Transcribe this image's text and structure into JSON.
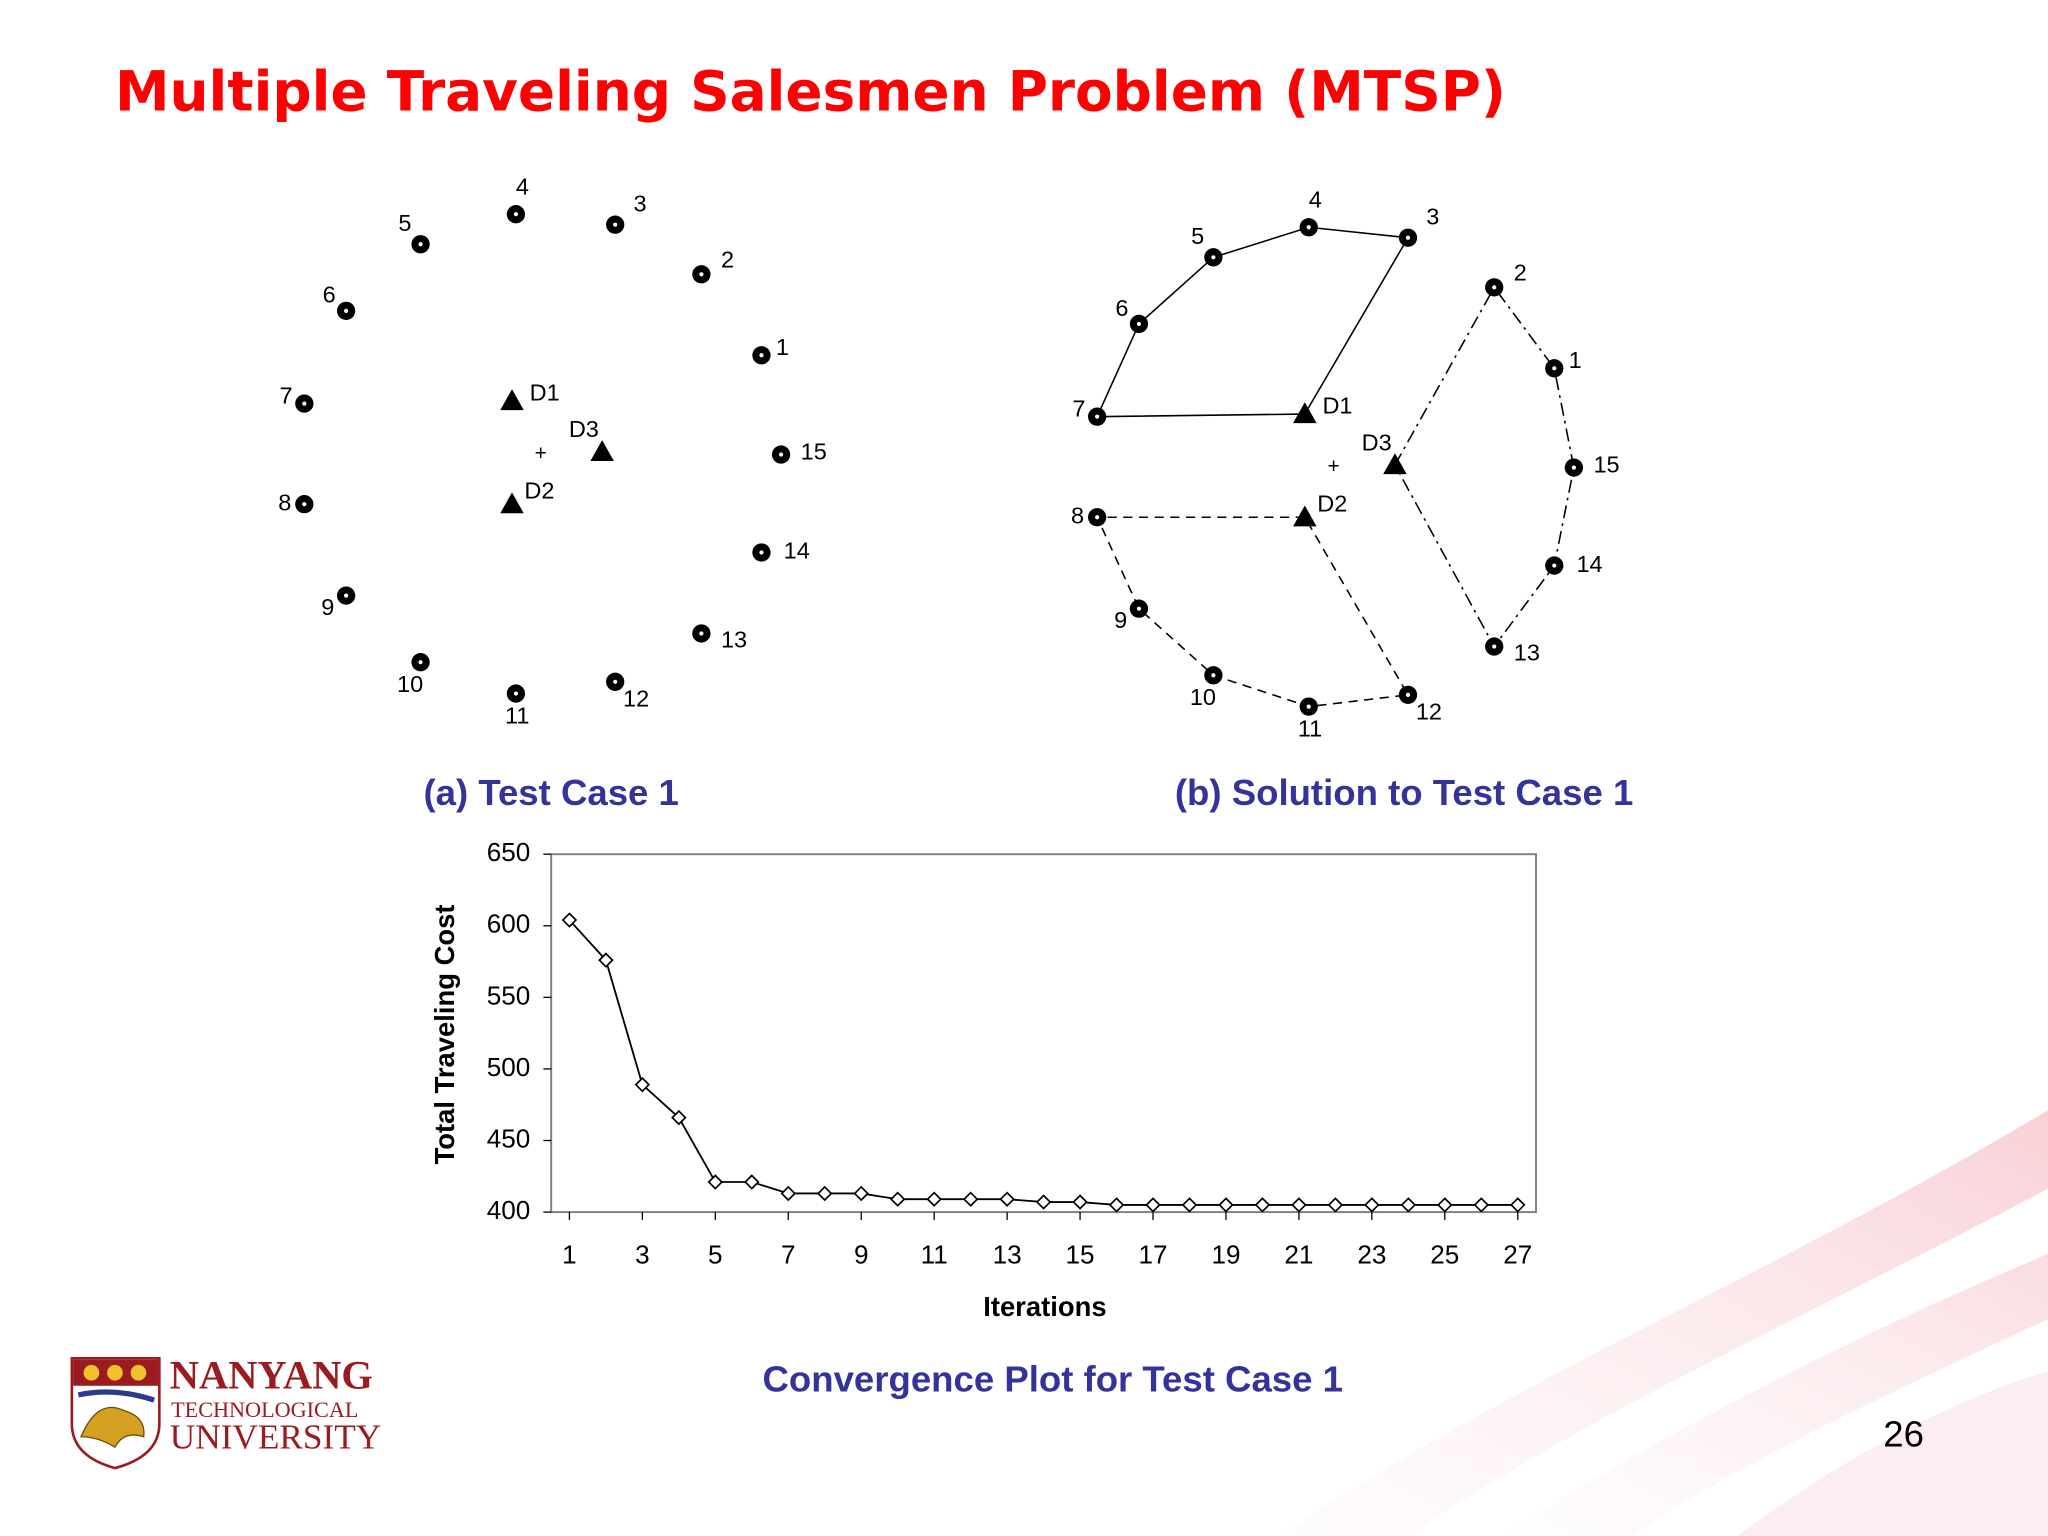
{
  "title": "Multiple Traveling Salesmen Problem (MTSP)",
  "panels": [
    {
      "caption": "(a) Test Case 1",
      "nodes": [
        "1",
        "2",
        "3",
        "4",
        "5",
        "6",
        "7",
        "8",
        "9",
        "10",
        "11",
        "12",
        "13",
        "14",
        "15"
      ],
      "depots": [
        "D1",
        "D2",
        "D3"
      ]
    },
    {
      "caption": "(b) Solution to Test Case 1",
      "nodes": [
        "1",
        "2",
        "3",
        "4",
        "5",
        "6",
        "7",
        "8",
        "9",
        "10",
        "11",
        "12",
        "13",
        "14",
        "15"
      ],
      "depots": [
        "D1",
        "D2",
        "D3"
      ]
    }
  ],
  "chart_data": {
    "type": "line",
    "caption": "Convergence Plot for Test Case 1",
    "xlabel": "Iterations",
    "ylabel": "Total Traveling Cost",
    "x": [
      1,
      2,
      3,
      4,
      5,
      6,
      7,
      8,
      9,
      10,
      11,
      12,
      13,
      14,
      15,
      16,
      17,
      18,
      19,
      20,
      21,
      22,
      23,
      24,
      25,
      26,
      27
    ],
    "values": [
      604,
      576,
      489,
      466,
      421,
      421,
      413,
      413,
      413,
      409,
      409,
      409,
      409,
      407,
      407,
      405,
      405,
      405,
      405,
      405,
      405,
      405,
      405,
      405,
      405,
      405,
      405
    ],
    "color": "#000000",
    "marker": "diamond",
    "xlim": [
      0.5,
      27.5
    ],
    "xticks": [
      1,
      3,
      5,
      7,
      9,
      11,
      13,
      15,
      17,
      19,
      21,
      23,
      25,
      27
    ],
    "ylim": [
      400,
      650
    ],
    "yticks": [
      400,
      450,
      500,
      550,
      600,
      650
    ]
  },
  "logo": {
    "line1": "NANYANG",
    "line2": "TECHNOLOGICAL",
    "line3": "UNIVERSITY"
  },
  "page_number": "26"
}
